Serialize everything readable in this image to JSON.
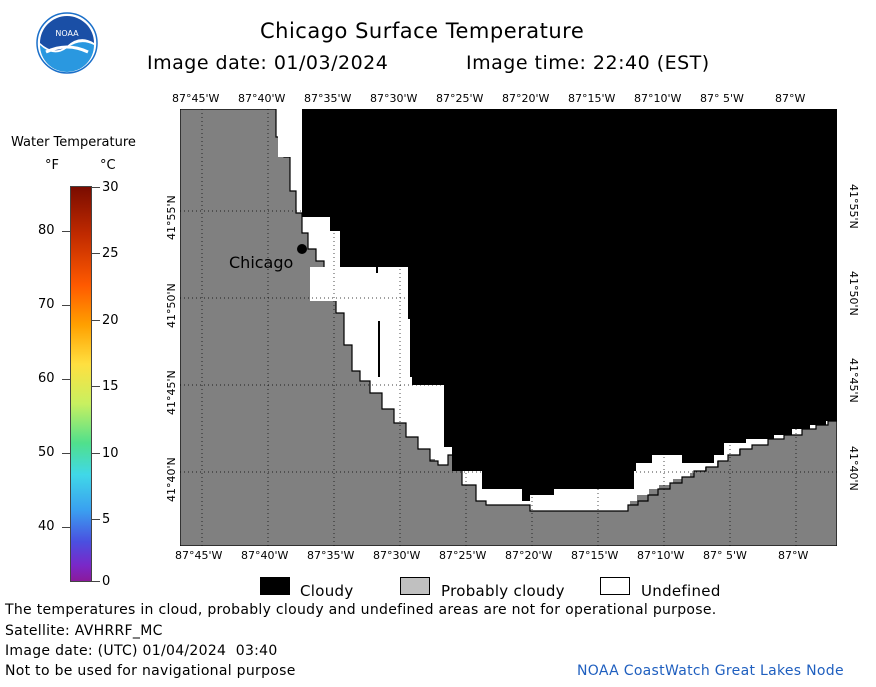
{
  "header": {
    "title": "Chicago Surface Temperature",
    "image_date_label": "Image date: 01/03/2024",
    "image_time_label": "Image time: 22:40 (EST)"
  },
  "logo": {
    "text": "NOAA"
  },
  "legend": {
    "title": "Water Temperature",
    "unit_f": "°F",
    "unit_c": "°C",
    "f_ticks": [
      "80",
      "70",
      "60",
      "50",
      "40"
    ],
    "c_ticks": [
      "30",
      "25",
      "20",
      "15",
      "10",
      "5",
      "0"
    ]
  },
  "map": {
    "lon_labels": [
      "87°45'W",
      "87°40'W",
      "87°35'W",
      "87°30'W",
      "87°25'W",
      "87°20'W",
      "87°15'W",
      "87°10'W",
      "87° 5'W",
      "87°W"
    ],
    "lat_labels": [
      "41°55'N",
      "41°50'N",
      "41°45'N",
      "41°40'N"
    ],
    "city_label": "Chicago",
    "colors": {
      "land": "#808080",
      "cloudy": "#000000",
      "undefined": "#ffffff",
      "probably_cloudy": "#c0c0c0"
    }
  },
  "categories": {
    "cloudy": "Cloudy",
    "probably_cloudy": "Probably cloudy",
    "undefined": "Undefined"
  },
  "footer": {
    "line1": "The temperatures in cloud, probably cloudy and undefined areas are not for operational purpose.",
    "line2": "Satellite: AVHRRF_MC",
    "line3": "Image date: (UTC) 01/04/2024  03:40",
    "line4": "Not to be used for navigational purpose",
    "credit": "NOAA CoastWatch Great Lakes Node"
  }
}
